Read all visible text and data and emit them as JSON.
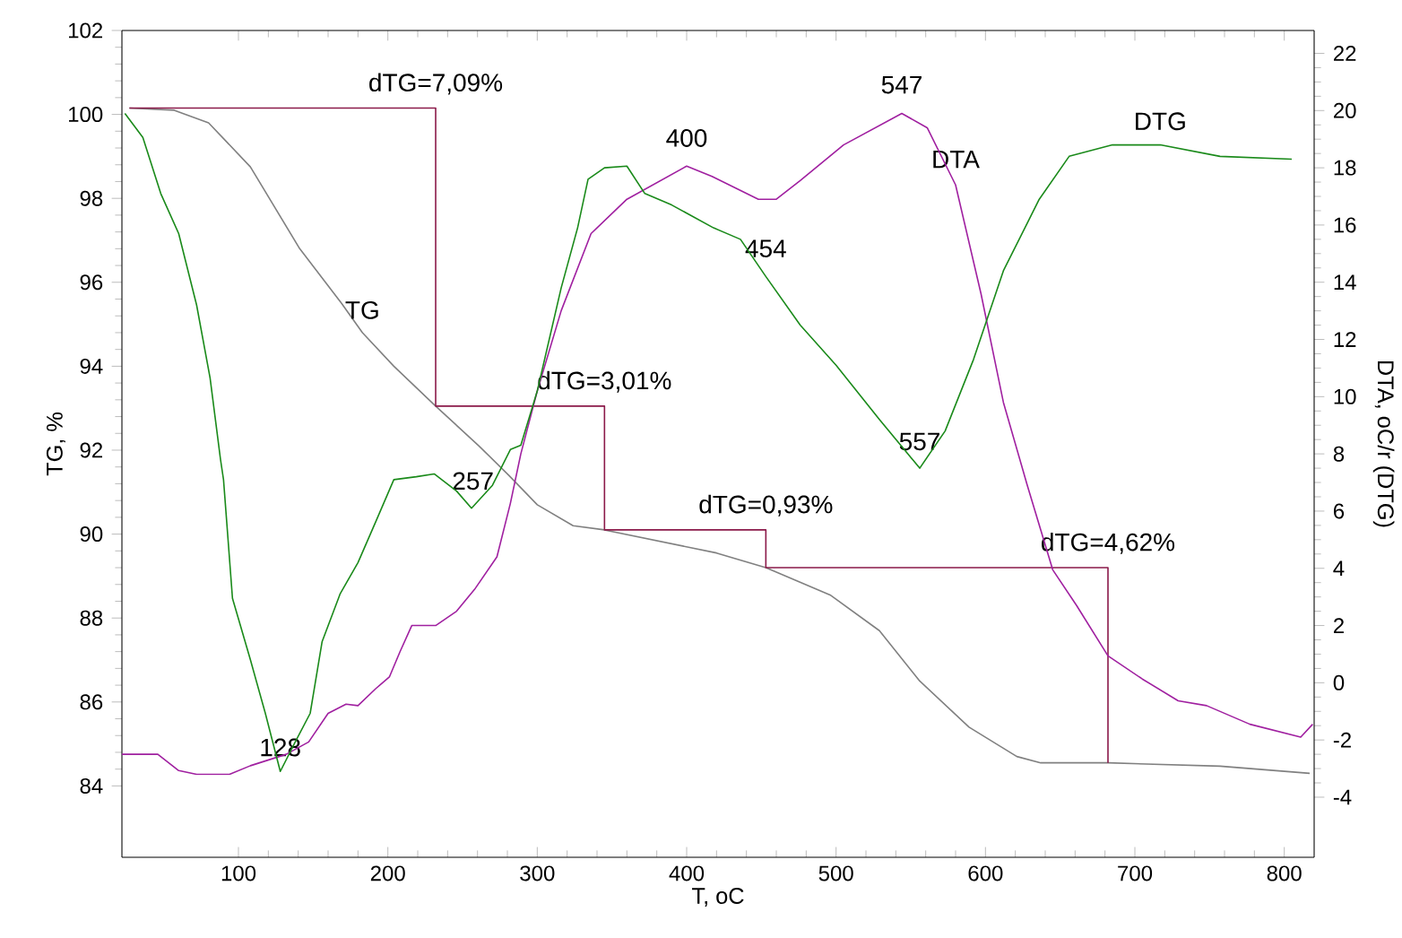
{
  "chart_data": {
    "type": "line",
    "xlabel": "T, oC",
    "ylabel": "TG, %",
    "y2label": "DTA, oC/r (DTG)",
    "xlim": [
      22,
      820
    ],
    "xticks": [
      100,
      200,
      300,
      400,
      500,
      600,
      700,
      800
    ],
    "ylim": [
      82.3,
      102
    ],
    "yticks": [
      84,
      86,
      88,
      90,
      92,
      94,
      96,
      98,
      100,
      102
    ],
    "y2lim": [
      -6.1,
      22.8
    ],
    "y2ticks": [
      -4,
      -2,
      0,
      2,
      4,
      6,
      8,
      10,
      12,
      14,
      16,
      18,
      20,
      22
    ],
    "grid": false,
    "marker": "none",
    "line_style": "solid",
    "series": [
      {
        "color": "#808080",
        "x": [
          27,
          57,
          80,
          108,
          141,
          169,
          183,
          204,
          232,
          261,
          281,
          300,
          324,
          345,
          420,
          453,
          496,
          529,
          556,
          589,
          621,
          637,
          682,
          757,
          817
        ],
        "values": [
          100.15,
          100.1,
          99.8,
          98.75,
          96.8,
          95.5,
          94.8,
          94.0,
          93.05,
          92.1,
          91.4,
          90.7,
          90.2,
          90.1,
          89.55,
          89.2,
          88.55,
          87.7,
          86.5,
          85.4,
          84.7,
          84.55,
          84.55,
          84.47,
          84.3
        ]
      },
      {
        "color": "#8b1a4a",
        "x": [
          27,
          232,
          232,
          345,
          345,
          453,
          453,
          682,
          682
        ],
        "values": [
          100.15,
          100.15,
          93.05,
          93.05,
          90.1,
          90.1,
          89.2,
          89.2,
          84.55
        ]
      },
      {
        "color": "#a020a0",
        "axis": "y2",
        "x": [
          22,
          46,
          60,
          72,
          94,
          108,
          132,
          147,
          160,
          172,
          180,
          192,
          201,
          208,
          216,
          232,
          246,
          258,
          273,
          282,
          289,
          300,
          316,
          336,
          360,
          400,
          417,
          448,
          460,
          476,
          505,
          544,
          561,
          580,
          597,
          612,
          628,
          645,
          661,
          682,
          705,
          729,
          748,
          777,
          811,
          819
        ],
        "values": [
          -2.5,
          -2.5,
          -3.07,
          -3.2,
          -3.2,
          -2.9,
          -2.5,
          -2.07,
          -1.07,
          -0.75,
          -0.8,
          -0.2,
          0.2,
          1.07,
          2.0,
          2.0,
          2.5,
          3.26,
          4.4,
          6.27,
          8.0,
          10.2,
          13.0,
          15.7,
          16.9,
          18.06,
          17.7,
          16.9,
          16.9,
          17.55,
          18.8,
          19.9,
          19.4,
          17.4,
          13.6,
          9.8,
          6.9,
          3.95,
          2.7,
          0.94,
          0.13,
          -0.63,
          -0.8,
          -1.45,
          -1.9,
          -1.45
        ]
      },
      {
        "color": "#1a8a1a",
        "axis": "y2",
        "x": [
          24,
          36,
          48,
          60,
          72,
          81,
          88,
          90,
          96,
          108,
          118,
          128,
          138,
          148,
          156,
          168,
          180,
          192,
          204,
          219,
          231,
          246,
          256,
          270,
          282,
          289,
          300,
          316,
          327,
          334,
          345,
          360,
          372,
          390,
          418,
          436,
          453,
          476,
          500,
          529,
          556,
          573,
          592,
          612,
          636,
          656,
          685,
          717,
          757,
          805
        ],
        "values": [
          19.9,
          19.06,
          17.1,
          15.7,
          13.2,
          10.66,
          7.8,
          7.1,
          2.95,
          0.8,
          -1.07,
          -3.1,
          -2.07,
          -1.07,
          1.44,
          3.1,
          4.2,
          5.64,
          7.1,
          7.2,
          7.3,
          6.7,
          6.1,
          6.9,
          8.15,
          8.3,
          10.2,
          13.8,
          15.9,
          17.6,
          18.0,
          18.06,
          17.1,
          16.7,
          15.9,
          15.5,
          14.2,
          12.5,
          11.1,
          9.2,
          7.5,
          8.8,
          11.3,
          14.4,
          16.9,
          18.4,
          18.8,
          18.8,
          18.4,
          18.3
        ]
      }
    ],
    "annotations": [
      {
        "text": "dTG=7,09%",
        "x": 232,
        "y": 100.15
      },
      {
        "text": "dTG=3,01%",
        "x": 345,
        "y": 93.05
      },
      {
        "text": "dTG=0,93%",
        "x": 453,
        "y": 90.1
      },
      {
        "text": "dTG=4,62%",
        "x": 682,
        "y": 89.2
      },
      {
        "text": "TG",
        "x": 183,
        "y": 94.8
      },
      {
        "text": "400",
        "x": 400,
        "y": 98.9
      },
      {
        "text": "547",
        "x": 544,
        "y": 100.17
      },
      {
        "text": "454",
        "x": 453,
        "y": 96.27
      },
      {
        "text": "557",
        "x": 556,
        "y": 91.67
      },
      {
        "text": "257",
        "x": 257,
        "y": 90.73
      },
      {
        "text": "128",
        "x": 128,
        "y": 84.38
      },
      {
        "text": "DTA",
        "x": 580,
        "y": 98.4
      },
      {
        "text": "DTG",
        "x": 717,
        "y": 99.3
      }
    ]
  }
}
